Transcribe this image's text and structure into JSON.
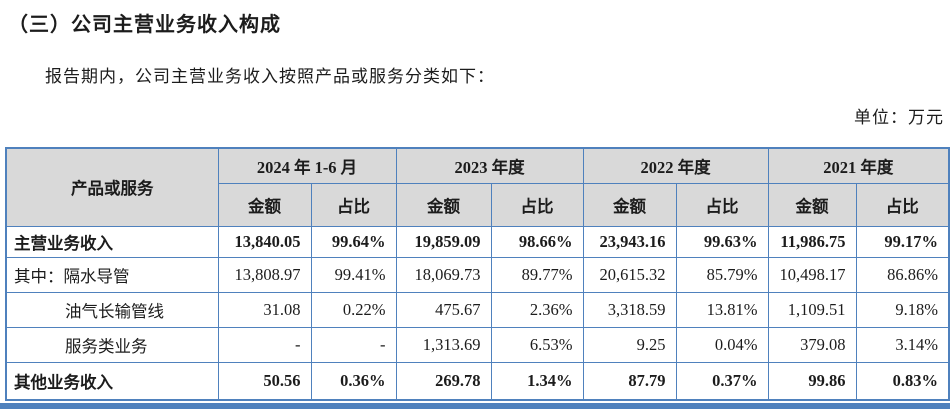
{
  "page": {
    "title": "（三）公司主营业务收入构成",
    "intro": "报告期内，公司主营业务收入按照产品或服务分类如下：",
    "unit_label": "单位：万元"
  },
  "table": {
    "product_header": "产品或服务",
    "amount_label": "金额",
    "ratio_label": "占比",
    "periods": [
      "2024 年 1-6 月",
      "2023 年度",
      "2022 年度",
      "2021 年度"
    ],
    "rows": [
      {
        "label": "主营业务收入",
        "bold": true,
        "indent": 0,
        "values": [
          "13,840.05",
          "99.64%",
          "19,859.09",
          "98.66%",
          "23,943.16",
          "99.63%",
          "11,986.75",
          "99.17%"
        ]
      },
      {
        "label": "其中：隔水导管",
        "bold": false,
        "indent": 0,
        "values": [
          "13,808.97",
          "99.41%",
          "18,069.73",
          "89.77%",
          "20,615.32",
          "85.79%",
          "10,498.17",
          "86.86%"
        ]
      },
      {
        "label": "油气长输管线",
        "bold": false,
        "indent": 1,
        "values": [
          "31.08",
          "0.22%",
          "475.67",
          "2.36%",
          "3,318.59",
          "13.81%",
          "1,109.51",
          "9.18%"
        ]
      },
      {
        "label": "服务类业务",
        "bold": false,
        "indent": 1,
        "values": [
          "-",
          "-",
          "1,313.69",
          "6.53%",
          "9.25",
          "0.04%",
          "379.08",
          "3.14%"
        ]
      },
      {
        "label": "其他业务收入",
        "bold": true,
        "indent": 0,
        "values": [
          "50.56",
          "0.36%",
          "269.78",
          "1.34%",
          "87.79",
          "0.37%",
          "99.86",
          "0.83%"
        ]
      }
    ]
  },
  "colors": {
    "border_blue": "#4f81bd",
    "header_bg": "#d9d9d9",
    "text": "#1c1c1c"
  }
}
